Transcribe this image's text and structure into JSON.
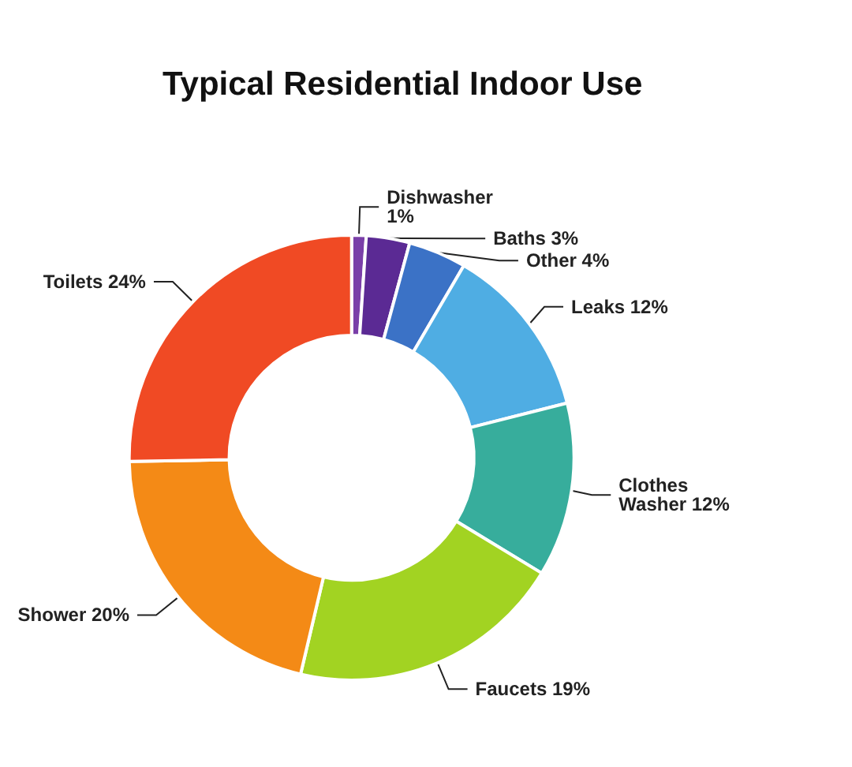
{
  "chart_data": {
    "type": "donut",
    "title": "Typical Residential Indoor Use",
    "categories": [
      "Dishwasher",
      "Baths",
      "Other",
      "Leaks",
      "Clothes Washer",
      "Faucets",
      "Shower",
      "Toilets"
    ],
    "values": [
      1,
      3,
      4,
      12,
      12,
      19,
      20,
      24
    ],
    "value_labels": [
      "1%",
      "3%",
      "4%",
      "12%",
      "12%",
      "19%",
      "20%",
      "24%"
    ],
    "colors": [
      "#7a3fa8",
      "#5b2a94",
      "#3b72c6",
      "#4fade3",
      "#37ad9c",
      "#a2d322",
      "#f48a16",
      "#f04a24"
    ],
    "legend": false
  }
}
